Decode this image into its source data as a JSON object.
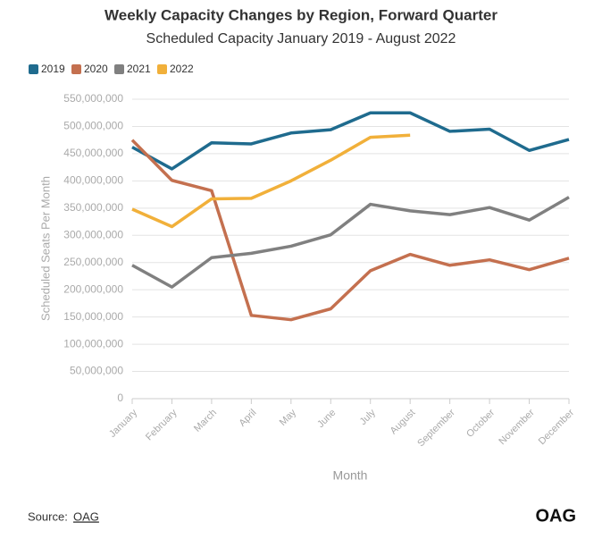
{
  "chart_data": {
    "type": "line",
    "title": "Weekly Capacity Changes by Region, Forward Quarter",
    "subtitle": "Scheduled Capacity January 2019 - August 2022",
    "x_label": "Month",
    "y_label": "Scheduled Seats Per Month",
    "categories": [
      "January",
      "February",
      "March",
      "April",
      "May",
      "June",
      "July",
      "August",
      "September",
      "October",
      "November",
      "December"
    ],
    "series": [
      {
        "name": "2019",
        "color": "#1f6b8e",
        "values": [
          462000000,
          422000000,
          470000000,
          468000000,
          488000000,
          494000000,
          525000000,
          525000000,
          491000000,
          495000000,
          456000000,
          476000000
        ]
      },
      {
        "name": "2020",
        "color": "#c4704f",
        "values": [
          475000000,
          401000000,
          382000000,
          153000000,
          145000000,
          165000000,
          235000000,
          265000000,
          245000000,
          255000000,
          237000000,
          258000000
        ]
      },
      {
        "name": "2021",
        "color": "#808080",
        "values": [
          245000000,
          205000000,
          259000000,
          267000000,
          280000000,
          301000000,
          357000000,
          345000000,
          338000000,
          351000000,
          328000000,
          370000000
        ]
      },
      {
        "name": "2022",
        "color": "#f1b03a",
        "values": [
          348000000,
          316000000,
          367000000,
          368000000,
          400000000,
          438000000,
          480000000,
          484000000,
          null,
          null,
          null,
          null
        ]
      }
    ],
    "ylim": [
      0,
      550000000
    ],
    "yticks": [
      0,
      {
        "value": 50000000,
        "label": "50,000,000"
      },
      {
        "value": 100000000,
        "label": "100,000,000"
      },
      {
        "value": 150000000,
        "label": "150,000,000"
      },
      {
        "value": 200000000,
        "label": "200,000,000"
      },
      {
        "value": 250000000,
        "label": "250,000,000"
      },
      {
        "value": 300000000,
        "label": "300,000,000"
      },
      {
        "value": 350000000,
        "label": "350,000,000"
      },
      {
        "value": 400000000,
        "label": "400,000,000"
      },
      {
        "value": 450000000,
        "label": "450,000,000"
      },
      {
        "value": 500000000,
        "label": "500,000,000"
      },
      {
        "value": 550000000,
        "label": "550,000,000"
      }
    ],
    "grid": true,
    "legend": "top-left",
    "source_label": "Source:",
    "source_link": "OAG",
    "logo": "OAG"
  }
}
